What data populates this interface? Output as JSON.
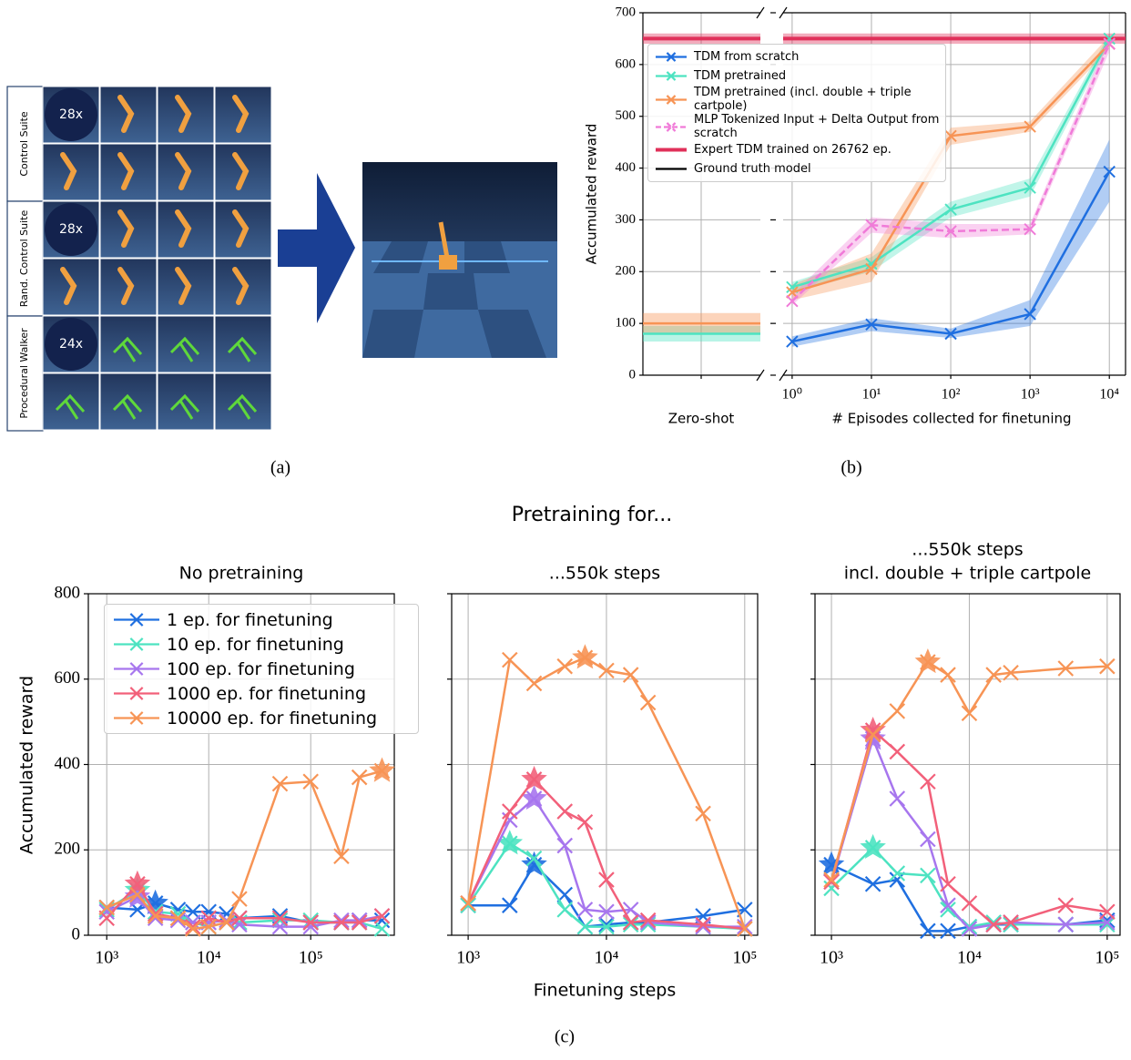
{
  "panel_a": {
    "caption": "(a)",
    "groups": [
      {
        "label": "Control Suite",
        "count": "28x"
      },
      {
        "label": "Rand. Control Suite",
        "count": "28x"
      },
      {
        "label": "Procedural Walker",
        "count": "24x"
      }
    ]
  },
  "chart_data": [
    {
      "type": "line",
      "caption": "(b)",
      "xscale": "log",
      "ylabel": "Accumulated reward",
      "xlabel": "# Episodes collected for finetuning",
      "zero_shot_label": "Zero-shot",
      "x": [
        1,
        10,
        100,
        1000,
        10000
      ],
      "xlim": [
        0.77,
        16000
      ],
      "ylim": [
        0,
        700
      ],
      "yticks": [
        0,
        100,
        200,
        300,
        400,
        500,
        600,
        700
      ],
      "xticks": [
        {
          "value": 1,
          "label": "10⁰"
        },
        {
          "value": 10,
          "label": "10¹"
        },
        {
          "value": 100,
          "label": "10²"
        },
        {
          "value": 1000,
          "label": "10³"
        },
        {
          "value": 10000,
          "label": "10⁴"
        }
      ],
      "grid": true,
      "series": [
        {
          "name": "TDM from scratch",
          "color": "#1f6fe0",
          "values": [
            65,
            98,
            80,
            118,
            393
          ],
          "lower": [
            55,
            85,
            72,
            95,
            335
          ],
          "upper": [
            75,
            110,
            90,
            145,
            455
          ]
        },
        {
          "name": "TDM pretrained",
          "color": "#4de3c1",
          "values": [
            170,
            215,
            320,
            362,
            650
          ],
          "lower": [
            160,
            200,
            305,
            345,
            640
          ],
          "upper": [
            180,
            228,
            335,
            380,
            660
          ],
          "zero_shot": 80,
          "zero_shot_band": [
            65,
            95
          ]
        },
        {
          "name": "TDM pretrained (incl. double + triple cartpole)",
          "color": "#f79455",
          "values": [
            160,
            205,
            462,
            480,
            640
          ],
          "lower": [
            145,
            180,
            445,
            470,
            630
          ],
          "upper": [
            175,
            235,
            478,
            490,
            655
          ],
          "zero_shot": 100,
          "zero_shot_band": [
            80,
            120
          ]
        },
        {
          "name": "MLP Tokenized Input + Delta Output from scratch",
          "color": "#f07ad8",
          "dash": true,
          "values": [
            143,
            290,
            278,
            282,
            640
          ],
          "lower": [
            135,
            275,
            265,
            272,
            625
          ],
          "upper": [
            155,
            305,
            292,
            292,
            655
          ]
        },
        {
          "name": "Expert TDM trained on 26762 ep.",
          "color": "#e0305a",
          "level": 650,
          "level_band": [
            640,
            660
          ]
        },
        {
          "name": "Ground truth model",
          "color": "#000000",
          "level": 650
        }
      ]
    },
    {
      "type": "line",
      "title": "No pretraining",
      "ylabel": "Accumulated reward",
      "legend": "upper left",
      "xscale": "log",
      "x": [
        1000,
        2000,
        3000,
        5000,
        7000,
        10000,
        15000,
        20000,
        50000,
        100000,
        200000,
        300000,
        500000
      ],
      "xlim": [
        660,
        660000
      ],
      "ylim": [
        0,
        800
      ],
      "yticks": [
        0,
        200,
        400,
        600,
        800
      ],
      "xticks": [
        {
          "value": 1000,
          "label": "10³"
        },
        {
          "value": 10000,
          "label": "10⁴"
        },
        {
          "value": 100000,
          "label": "10⁵"
        }
      ],
      "grid": true,
      "series": [
        {
          "name": "1 ep. for finetuning",
          "color": "#1f6fe0",
          "values": [
            65,
            60,
            75,
            60,
            55,
            55,
            50,
            40,
            45,
            30,
            30,
            35,
            35
          ]
        },
        {
          "name": "10 ep. for finetuning",
          "color": "#4de3c1",
          "values": [
            60,
            105,
            55,
            50,
            30,
            20,
            30,
            30,
            35,
            35,
            30,
            30,
            15
          ]
        },
        {
          "name": "100 ep. for finetuning",
          "color": "#a776ee",
          "values": [
            55,
            90,
            40,
            35,
            30,
            30,
            35,
            25,
            20,
            20,
            35,
            35,
            45
          ]
        },
        {
          "name": "1000 ep. for finetuning",
          "color": "#f2607a",
          "values": [
            40,
            120,
            50,
            40,
            20,
            40,
            30,
            40,
            40,
            30,
            30,
            30,
            45
          ]
        },
        {
          "name": "10000 ep. for finetuning",
          "color": "#f79455",
          "values": [
            65,
            95,
            45,
            40,
            15,
            20,
            30,
            85,
            355,
            360,
            185,
            370,
            385
          ]
        }
      ]
    },
    {
      "type": "line",
      "title": "...550k steps",
      "xscale": "log",
      "x": [
        1000,
        2000,
        3000,
        5000,
        7000,
        10000,
        15000,
        20000,
        50000,
        100000
      ],
      "xlim": [
        760,
        124000
      ],
      "ylim": [
        0,
        800
      ],
      "yticks": [
        0,
        200,
        400,
        600,
        800
      ],
      "xticks": [
        {
          "value": 1000,
          "label": "10³"
        },
        {
          "value": 10000,
          "label": "10⁴"
        },
        {
          "value": 100000,
          "label": "10⁵"
        }
      ],
      "grid": true,
      "series": [
        {
          "name": "1 ep. for finetuning",
          "color": "#1f6fe0",
          "values": [
            70,
            70,
            165,
            95,
            20,
            25,
            30,
            30,
            45,
            60
          ]
        },
        {
          "name": "10 ep. for finetuning",
          "color": "#4de3c1",
          "values": [
            70,
            215,
            180,
            60,
            20,
            20,
            25,
            25,
            20,
            15
          ]
        },
        {
          "name": "100 ep. for finetuning",
          "color": "#a776ee",
          "values": [
            75,
            270,
            320,
            210,
            60,
            55,
            60,
            30,
            20,
            20
          ]
        },
        {
          "name": "1000 ep. for finetuning",
          "color": "#f2607a",
          "values": [
            75,
            290,
            365,
            290,
            265,
            130,
            30,
            35,
            25,
            15
          ]
        },
        {
          "name": "10000 ep. for finetuning",
          "color": "#f79455",
          "values": [
            75,
            645,
            590,
            630,
            650,
            620,
            610,
            545,
            285,
            15
          ]
        }
      ]
    },
    {
      "type": "line",
      "title": [
        "...550k steps",
        "incl. double + triple cartpole"
      ],
      "xscale": "log",
      "x": [
        1000,
        2000,
        3000,
        5000,
        7000,
        10000,
        15000,
        20000,
        50000,
        100000
      ],
      "xlim": [
        760,
        124000
      ],
      "ylim": [
        0,
        800
      ],
      "yticks": [
        0,
        200,
        400,
        600,
        800
      ],
      "xticks": [
        {
          "value": 1000,
          "label": "10³"
        },
        {
          "value": 10000,
          "label": "10⁴"
        },
        {
          "value": 100000,
          "label": "10⁵"
        }
      ],
      "grid": true,
      "series": [
        {
          "name": "1 ep. for finetuning",
          "color": "#1f6fe0",
          "values": [
            165,
            120,
            130,
            10,
            10,
            20,
            25,
            25,
            25,
            35
          ]
        },
        {
          "name": "10 ep. for finetuning",
          "color": "#4de3c1",
          "values": [
            110,
            205,
            145,
            140,
            60,
            20,
            30,
            25,
            25,
            25
          ]
        },
        {
          "name": "100 ep. for finetuning",
          "color": "#a776ee",
          "values": [
            125,
            460,
            320,
            225,
            70,
            15,
            25,
            30,
            25,
            30
          ]
        },
        {
          "name": "1000 ep. for finetuning",
          "color": "#f2607a",
          "values": [
            125,
            480,
            430,
            360,
            120,
            75,
            25,
            30,
            70,
            55
          ]
        },
        {
          "name": "10000 ep. for finetuning",
          "color": "#f79455",
          "values": [
            130,
            470,
            525,
            640,
            610,
            520,
            610,
            615,
            625,
            630
          ]
        }
      ]
    }
  ],
  "figure_c": {
    "title": "Pretraining for...",
    "xlabel": "Finetuning steps",
    "caption": "(c)"
  }
}
